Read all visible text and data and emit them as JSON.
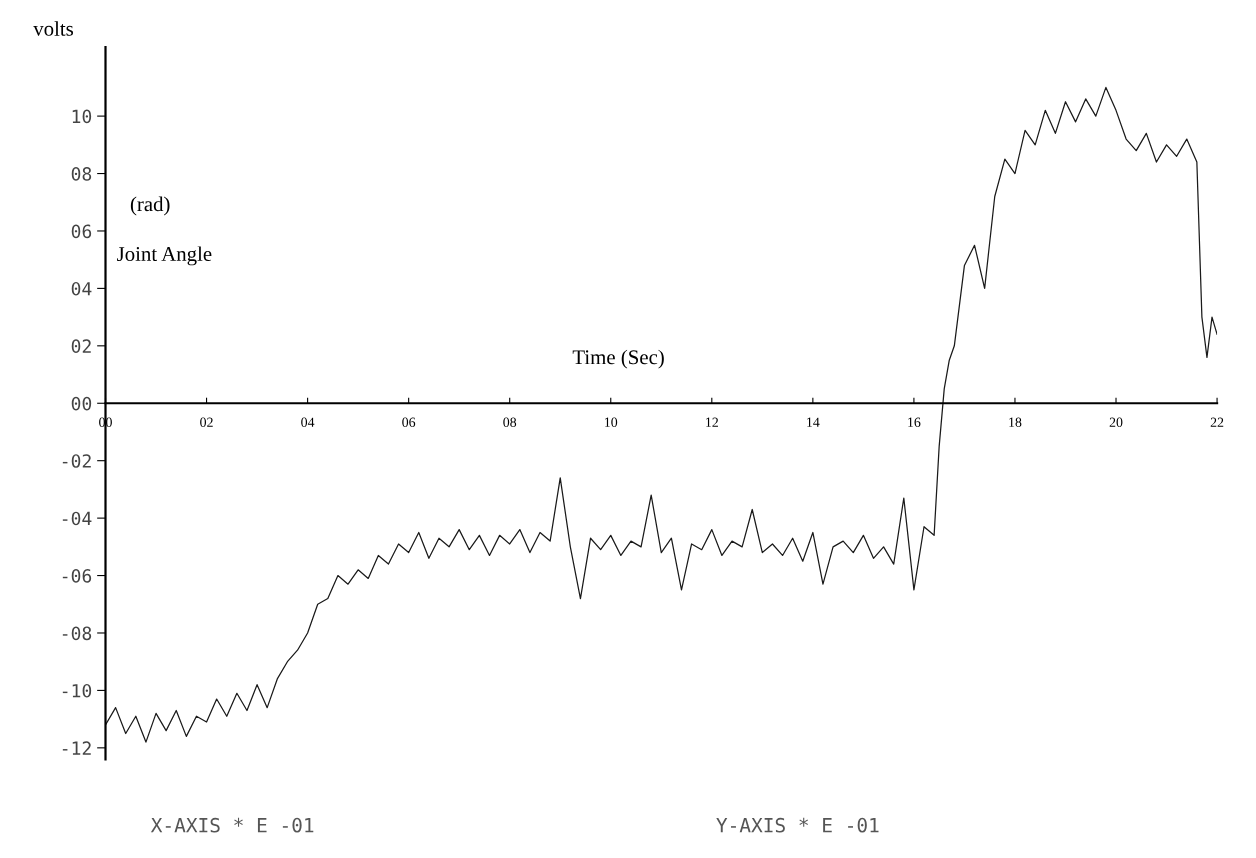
{
  "chart_data": {
    "type": "line",
    "xlabel": "Time (Sec)",
    "ylabel": "volts",
    "annotations": [
      "(rad)",
      "Joint Angle",
      "X-AXIS * E -01",
      "Y-AXIS * E -01"
    ],
    "xlim": [
      0,
      22
    ],
    "ylim": [
      -12.4,
      12.4
    ],
    "grid": false,
    "legend": false,
    "marker": "none",
    "line_style": "solid",
    "xticks": [
      {
        "value": 0,
        "label": "00"
      },
      {
        "value": 2,
        "label": "02"
      },
      {
        "value": 4,
        "label": "04"
      },
      {
        "value": 6,
        "label": "06"
      },
      {
        "value": 8,
        "label": "08"
      },
      {
        "value": 10,
        "label": "10"
      },
      {
        "value": 12,
        "label": "12"
      },
      {
        "value": 14,
        "label": "14"
      },
      {
        "value": 16,
        "label": "16"
      },
      {
        "value": 18,
        "label": "18"
      },
      {
        "value": 20,
        "label": "20"
      },
      {
        "value": 22,
        "label": "22"
      }
    ],
    "yticks": [
      {
        "value": 10,
        "label": "10"
      },
      {
        "value": 8,
        "label": "08"
      },
      {
        "value": 6,
        "label": "06"
      },
      {
        "value": 4,
        "label": "04"
      },
      {
        "value": 2,
        "label": "02"
      },
      {
        "value": 0,
        "label": "00"
      },
      {
        "value": -2,
        "label": "-02"
      },
      {
        "value": -4,
        "label": "-04"
      },
      {
        "value": -6,
        "label": "-06"
      },
      {
        "value": -8,
        "label": "-08"
      },
      {
        "value": -10,
        "label": "-10"
      },
      {
        "value": -12,
        "label": "-12"
      }
    ],
    "series": [
      {
        "color": "#1a1a1a",
        "x": [
          0.0,
          0.2,
          0.4,
          0.6,
          0.8,
          1.0,
          1.2,
          1.4,
          1.6,
          1.8,
          2.0,
          2.2,
          2.4,
          2.6,
          2.8,
          3.0,
          3.2,
          3.4,
          3.6,
          3.8,
          4.0,
          4.2,
          4.4,
          4.6,
          4.8,
          5.0,
          5.2,
          5.4,
          5.6,
          5.8,
          6.0,
          6.2,
          6.4,
          6.6,
          6.8,
          7.0,
          7.2,
          7.4,
          7.6,
          7.8,
          8.0,
          8.2,
          8.4,
          8.6,
          8.8,
          9.0,
          9.2,
          9.4,
          9.6,
          9.8,
          10.0,
          10.2,
          10.4,
          10.6,
          10.8,
          11.0,
          11.2,
          11.4,
          11.6,
          11.8,
          12.0,
          12.2,
          12.4,
          12.6,
          12.8,
          13.0,
          13.2,
          13.4,
          13.6,
          13.8,
          14.0,
          14.2,
          14.4,
          14.6,
          14.8,
          15.0,
          15.2,
          15.4,
          15.6,
          15.8,
          16.0,
          16.2,
          16.4,
          16.5,
          16.6,
          16.7,
          16.8,
          17.0,
          17.2,
          17.4,
          17.6,
          17.8,
          18.0,
          18.2,
          18.4,
          18.6,
          18.8,
          19.0,
          19.2,
          19.4,
          19.6,
          19.8,
          20.0,
          20.2,
          20.4,
          20.6,
          20.8,
          21.0,
          21.2,
          21.4,
          21.6,
          21.7,
          21.8,
          21.9,
          22.0
        ],
        "values": [
          -11.2,
          -10.6,
          -11.5,
          -10.9,
          -11.8,
          -10.8,
          -11.4,
          -10.7,
          -11.6,
          -10.9,
          -11.1,
          -10.3,
          -10.9,
          -10.1,
          -10.7,
          -9.8,
          -10.6,
          -9.6,
          -9.0,
          -8.6,
          -8.0,
          -7.0,
          -6.8,
          -6.0,
          -6.3,
          -5.8,
          -6.1,
          -5.3,
          -5.6,
          -4.9,
          -5.2,
          -4.5,
          -5.4,
          -4.7,
          -5.0,
          -4.4,
          -5.1,
          -4.6,
          -5.3,
          -4.6,
          -4.9,
          -4.4,
          -5.2,
          -4.5,
          -4.8,
          -2.6,
          -5.0,
          -6.8,
          -4.7,
          -5.1,
          -4.6,
          -5.3,
          -4.8,
          -5.0,
          -3.2,
          -5.2,
          -4.7,
          -6.5,
          -4.9,
          -5.1,
          -4.4,
          -5.3,
          -4.8,
          -5.0,
          -3.7,
          -5.2,
          -4.9,
          -5.3,
          -4.7,
          -5.5,
          -4.5,
          -6.3,
          -5.0,
          -4.8,
          -5.2,
          -4.6,
          -5.4,
          -5.0,
          -5.6,
          -3.3,
          -6.5,
          -4.3,
          -4.6,
          -1.5,
          0.5,
          1.5,
          2.0,
          4.8,
          5.5,
          4.0,
          7.2,
          8.5,
          8.0,
          9.5,
          9.0,
          10.2,
          9.4,
          10.5,
          9.8,
          10.6,
          10.0,
          11.0,
          10.2,
          9.2,
          8.8,
          9.4,
          8.4,
          9.0,
          8.6,
          9.2,
          8.4,
          3.0,
          1.6,
          3.0,
          2.4
        ]
      }
    ]
  }
}
